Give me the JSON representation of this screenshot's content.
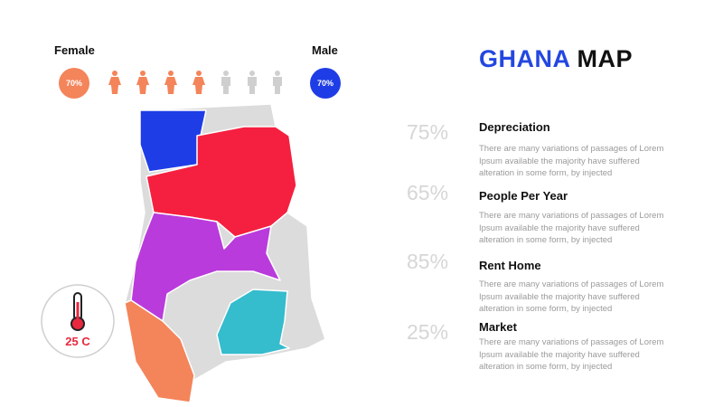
{
  "header": {
    "title_highlight": "GHANA",
    "title_rest": "MAP"
  },
  "gender": {
    "female_label": "Female",
    "female_value": "70%",
    "male_label": "Male",
    "male_value": "70%"
  },
  "temperature": "25 C",
  "items": [
    {
      "percent": "75%",
      "heading": "Depreciation",
      "text": "There are many variations of passages of Lorem Ipsum available the majority have suffered alteration in some form, by injected"
    },
    {
      "percent": "65%",
      "heading": "People Per Year",
      "text": "There are many variations of passages of Lorem Ipsum available the majority have suffered alteration in some form, by injected"
    },
    {
      "percent": "85%",
      "heading": "Rent Home",
      "text": "There are many variations of passages of Lorem Ipsum available the majority have suffered alteration in some form, by injected"
    },
    {
      "percent": "25%",
      "heading": "Market",
      "text": "There are many variations of passages of Lorem Ipsum available the majority have suffered alteration in some form, by injected"
    }
  ]
}
